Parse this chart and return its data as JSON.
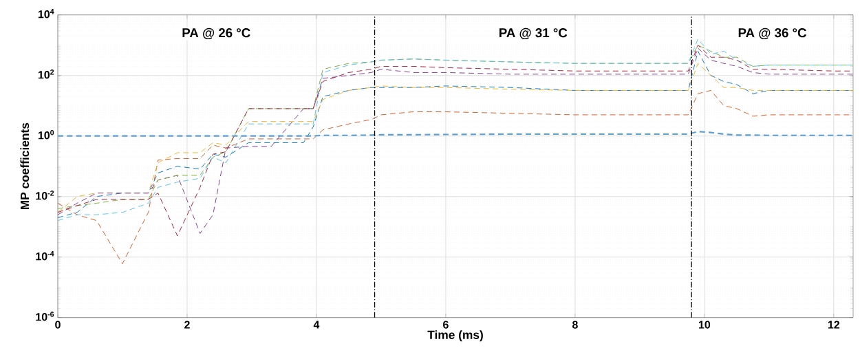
{
  "chart_data": {
    "type": "line",
    "xlabel": "Time (ms)",
    "ylabel": "MP coefficients",
    "log": true,
    "grid": true,
    "marker": "none",
    "line_style": "dashed",
    "xlim": [
      0,
      12.3
    ],
    "ylim": [
      1e-06,
      10000
    ],
    "xticks": [
      0,
      2,
      4,
      6,
      8,
      10,
      12
    ],
    "yticks": [
      {
        "value": 1e-06,
        "label": "10$^{-6}$"
      },
      {
        "value": 0.0001,
        "label": "10$^{-4}$"
      },
      {
        "value": 0.01,
        "label": "10$^{-2}$"
      },
      {
        "value": 1,
        "label": "10$^{0}$"
      },
      {
        "value": 100,
        "label": "10$^{2}$"
      },
      {
        "value": 10000,
        "label": "10$^{4}$"
      }
    ],
    "x": [
      0,
      0.3,
      0.6,
      1.0,
      1.4,
      1.55,
      1.85,
      2.2,
      2.4,
      2.6,
      2.95,
      3.3,
      3.8,
      3.95,
      4.1,
      4.5,
      4.85,
      5.0,
      5.5,
      6,
      7,
      8,
      9,
      9.75,
      9.9,
      10.1,
      10.3,
      10.5,
      10.75,
      11,
      12,
      12.3
    ],
    "series": [
      {
        "color": "#0072bd",
        "values": [
          0.002,
          0.003,
          0.01,
          0.013,
          0.013,
          0.06,
          0.1,
          0.08,
          0.25,
          0.2,
          0.6,
          0.6,
          0.6,
          2,
          20,
          32,
          40,
          40,
          40,
          45,
          40,
          32,
          32,
          32,
          630,
          100,
          63,
          50,
          25,
          32,
          32,
          32
        ]
      },
      {
        "color": "#d95319",
        "values": [
          0.006,
          0.0025,
          0.0016,
          6e-05,
          0.003,
          0.16,
          0.18,
          0.18,
          0.5,
          0.4,
          0.8,
          0.8,
          0.8,
          0.8,
          1.6,
          2.5,
          3.5,
          5,
          6.3,
          6.3,
          5.6,
          5,
          5,
          5,
          25,
          32,
          10,
          8,
          4.5,
          5,
          5,
          5
        ]
      },
      {
        "color": "#edb120",
        "values": [
          0.003,
          0.01,
          0.013,
          0.013,
          0.013,
          0.13,
          0.28,
          0.28,
          0.6,
          0.5,
          3,
          3,
          3,
          3,
          16,
          32,
          40,
          45,
          40,
          40,
          35,
          32,
          32,
          32,
          250,
          100,
          40,
          40,
          32,
          32,
          32,
          32
        ]
      },
      {
        "color": "#7e2f8e",
        "values": [
          0.0025,
          0.006,
          0.013,
          0.013,
          0.013,
          0.035,
          0.05,
          0.0006,
          0.0025,
          0.4,
          0.45,
          0.45,
          8,
          8,
          80,
          100,
          125,
          160,
          125,
          125,
          110,
          110,
          110,
          110,
          800,
          320,
          250,
          200,
          125,
          110,
          110,
          110
        ]
      },
      {
        "color": "#77ac30",
        "values": [
          0.004,
          0.005,
          0.006,
          0.008,
          0.008,
          0.035,
          0.05,
          0.05,
          0.2,
          0.3,
          8,
          8,
          8,
          8,
          160,
          250,
          280,
          320,
          350,
          320,
          280,
          250,
          250,
          250,
          1000,
          630,
          400,
          400,
          200,
          220,
          220,
          220
        ]
      },
      {
        "color": "#4dbeee",
        "values": [
          0.0016,
          0.0025,
          0.0025,
          0.003,
          0.006,
          0.02,
          0.03,
          0.04,
          0.2,
          0.13,
          2.5,
          2.5,
          2.5,
          2.5,
          125,
          220,
          280,
          320,
          350,
          320,
          280,
          250,
          250,
          250,
          1600,
          500,
          630,
          320,
          200,
          220,
          220,
          220
        ]
      },
      {
        "color": "#a2142f",
        "values": [
          0.003,
          0.005,
          0.008,
          0.008,
          0.008,
          0.013,
          0.0005,
          0.02,
          0.25,
          0.3,
          8,
          8,
          8,
          8,
          63,
          125,
          160,
          200,
          200,
          180,
          160,
          140,
          140,
          140,
          1000,
          400,
          400,
          320,
          160,
          160,
          140,
          140
        ]
      },
      {
        "color": "#5a9fd4",
        "values": [
          1,
          1,
          1,
          1,
          1,
          1,
          1,
          1,
          1,
          1,
          1,
          1,
          1,
          1,
          1.05,
          1.05,
          1.07,
          1.1,
          1.1,
          1.12,
          1.15,
          1.15,
          1.15,
          1.15,
          1.4,
          1.3,
          1.15,
          1.07,
          1.07,
          1.05,
          1.05,
          1.05
        ]
      }
    ],
    "ref_lines": [
      {
        "axis": "x",
        "value": 4.9,
        "color": "#000000",
        "line_style": "dashdot"
      },
      {
        "axis": "x",
        "value": 9.8,
        "color": "#000000",
        "line_style": "dashdot"
      }
    ],
    "annotations": [
      "PA @ 26 °C",
      "PA @ 31 °C",
      "PA @ 36 °C"
    ]
  }
}
